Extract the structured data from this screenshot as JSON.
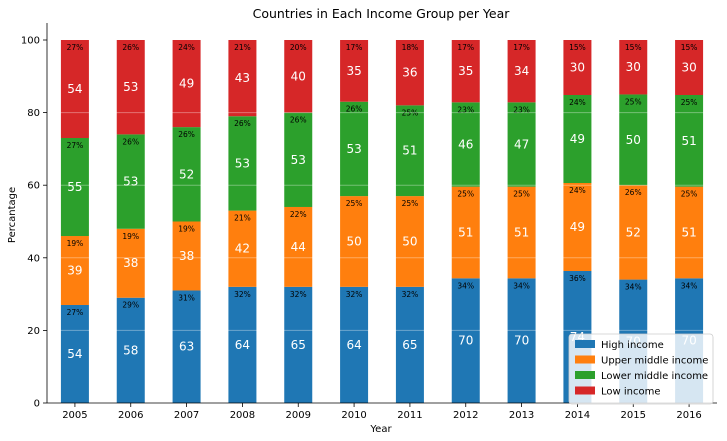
{
  "chart_data": {
    "type": "bar",
    "stacked": true,
    "normalized": true,
    "title": "Countries in Each Income Group per Year",
    "xlabel": "Year",
    "ylabel": "Percantage",
    "ylim": [
      0,
      100
    ],
    "yticks": [
      "0",
      "20",
      "40",
      "60",
      "80",
      "100"
    ],
    "grid": true,
    "legend_position": "bottom-right",
    "categories": [
      "2005",
      "2006",
      "2007",
      "2008",
      "2009",
      "2010",
      "2011",
      "2012",
      "2013",
      "2014",
      "2015",
      "2016"
    ],
    "series": [
      {
        "name": "High income",
        "color": "#1f77b4",
        "values": [
          27,
          29,
          31,
          32,
          32,
          32,
          32,
          34,
          34,
          36,
          34,
          34
        ],
        "percent_labels": [
          "27%",
          "29%",
          "31%",
          "32%",
          "32%",
          "32%",
          "32%",
          "34%",
          "34%",
          "36%",
          "34%",
          "34%"
        ],
        "count_labels": [
          "54",
          "58",
          "63",
          "64",
          "65",
          "64",
          "65",
          "70",
          "70",
          "74",
          "70",
          "70"
        ]
      },
      {
        "name": "Upper middle income",
        "color": "#ff7f0e",
        "values": [
          19,
          19,
          19,
          21,
          22,
          25,
          25,
          25,
          25,
          24,
          26,
          25
        ],
        "percent_labels": [
          "19%",
          "19%",
          "19%",
          "21%",
          "22%",
          "25%",
          "25%",
          "25%",
          "25%",
          "24%",
          "26%",
          "25%"
        ],
        "count_labels": [
          "39",
          "38",
          "38",
          "42",
          "44",
          "50",
          "50",
          "51",
          "51",
          "49",
          "52",
          "51"
        ]
      },
      {
        "name": "Lower middle income",
        "color": "#2ca02c",
        "values": [
          27,
          26,
          26,
          26,
          26,
          26,
          25,
          23,
          23,
          24,
          25,
          25
        ],
        "percent_labels": [
          "27%",
          "26%",
          "26%",
          "26%",
          "26%",
          "26%",
          "25%",
          "23%",
          "23%",
          "24%",
          "25%",
          "25%"
        ],
        "count_labels": [
          "55",
          "53",
          "52",
          "53",
          "53",
          "53",
          "51",
          "46",
          "47",
          "49",
          "50",
          "51"
        ]
      },
      {
        "name": "Low income",
        "color": "#d62728",
        "values": [
          27,
          26,
          24,
          21,
          20,
          17,
          18,
          17,
          17,
          15,
          15,
          15
        ],
        "percent_labels": [
          "27%",
          "26%",
          "24%",
          "21%",
          "20%",
          "17%",
          "18%",
          "17%",
          "17%",
          "15%",
          "15%",
          "15%"
        ],
        "count_labels": [
          "54",
          "53",
          "49",
          "43",
          "40",
          "35",
          "36",
          "35",
          "34",
          "30",
          "30",
          "30"
        ]
      }
    ]
  }
}
